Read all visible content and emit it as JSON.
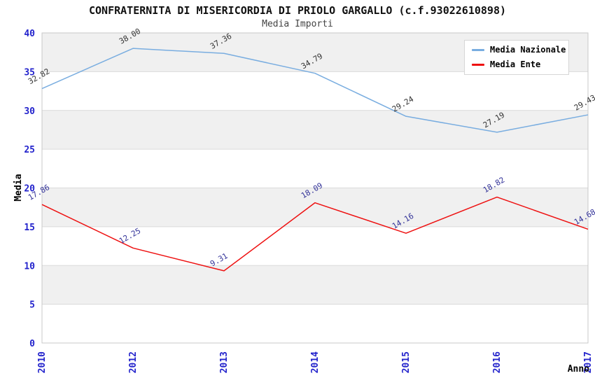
{
  "header": {
    "title": "CONFRATERNITA DI MISERICORDIA DI PRIOLO GARGALLO (c.f.93022610898)",
    "subtitle": "Media Importi"
  },
  "chart_data": {
    "type": "line",
    "title": "CONFRATERNITA DI MISERICORDIA DI PRIOLO GARGALLO (c.f.93022610898)",
    "subtitle": "Media Importi",
    "categories": [
      "2010",
      "2012",
      "2013",
      "2014",
      "2015",
      "2016",
      "2017"
    ],
    "series": [
      {
        "name": "Media Nazionale",
        "color": "#79ade0",
        "label_color": "#333333",
        "values": [
          32.82,
          38.0,
          37.36,
          34.79,
          29.24,
          27.19,
          29.43
        ]
      },
      {
        "name": "Media Ente",
        "color": "#ee1111",
        "label_color": "#333399",
        "values": [
          17.86,
          12.25,
          9.31,
          18.09,
          14.16,
          18.82,
          14.68
        ]
      }
    ],
    "xlabel": "Anno",
    "ylabel": "Media",
    "ylim": [
      0,
      40
    ],
    "ytick_step": 5,
    "yticks": [
      0,
      5,
      10,
      15,
      20,
      25,
      30,
      35,
      40
    ],
    "grid": "horizontal-bands",
    "legend_position": "top-right",
    "styles": {
      "tick_label_color": "#2323cc",
      "axis_title_color": "#000000",
      "band_fill_even": "#ffffff",
      "band_fill_odd": "#f0f0f0",
      "gridline_color": "#dadada",
      "plot_border_color": "#c9c9c9",
      "data_label_rotation_deg": -30,
      "x_tick_rotation_deg": -90
    }
  }
}
